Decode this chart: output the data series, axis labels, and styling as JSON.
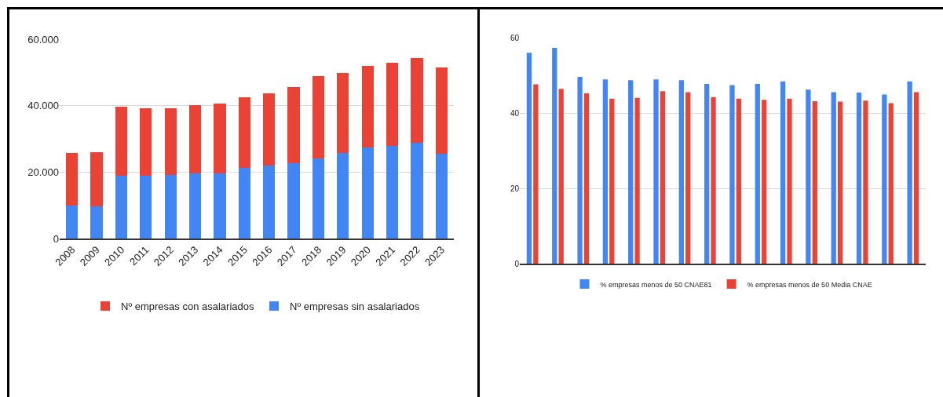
{
  "chart_data": [
    {
      "type": "bar",
      "stacked": true,
      "categories": [
        "2008",
        "2009",
        "2010",
        "2011",
        "2012",
        "2013",
        "2014",
        "2015",
        "2016",
        "2017",
        "2018",
        "2019",
        "2020",
        "2021",
        "2022",
        "2023"
      ],
      "series": [
        {
          "name": "Nº empresas sin asalariados",
          "color": "#4285f4",
          "values": [
            10000,
            9800,
            19000,
            19000,
            19200,
            19500,
            19700,
            21200,
            21900,
            22700,
            24100,
            25700,
            27300,
            27800,
            28900,
            25500
          ]
        },
        {
          "name": "Nº empresas con asalariados",
          "color": "#ea4335",
          "values": [
            15700,
            16100,
            20800,
            20300,
            20100,
            20700,
            21000,
            21300,
            21700,
            23000,
            24900,
            24100,
            24600,
            25200,
            25400,
            25900
          ]
        }
      ],
      "ylim": [
        0,
        60000
      ],
      "yticks": [
        0,
        {
          "value": 20000,
          "label": "20.000"
        },
        {
          "value": 40000,
          "label": "40.000"
        },
        {
          "value": 60000,
          "label": "60.000"
        }
      ],
      "grid": "y",
      "legend": "bottom"
    },
    {
      "type": "bar",
      "categories": [
        null,
        null,
        null,
        null,
        null,
        null,
        null,
        null,
        null,
        null,
        null,
        null,
        null,
        null,
        null,
        null
      ],
      "series": [
        {
          "name": "% empresas menos de 50 CNAE81",
          "color": "#4285f4",
          "values": [
            56.0,
            57.3,
            49.6,
            48.9,
            48.7,
            48.9,
            48.7,
            47.7,
            47.4,
            47.7,
            48.4,
            46.2,
            45.5,
            45.4,
            44.9,
            48.4
          ]
        },
        {
          "name": "% empresas menos de 50 Media CNAE",
          "color": "#ea4335",
          "values": [
            47.6,
            46.4,
            45.2,
            43.8,
            44.0,
            45.8,
            45.5,
            44.2,
            43.8,
            43.5,
            43.8,
            43.1,
            43.0,
            43.3,
            42.6,
            45.5
          ]
        }
      ],
      "ylim": [
        0,
        60
      ],
      "yticks": [
        0,
        20,
        40,
        60
      ],
      "grid": "y",
      "legend": "bottom"
    }
  ]
}
